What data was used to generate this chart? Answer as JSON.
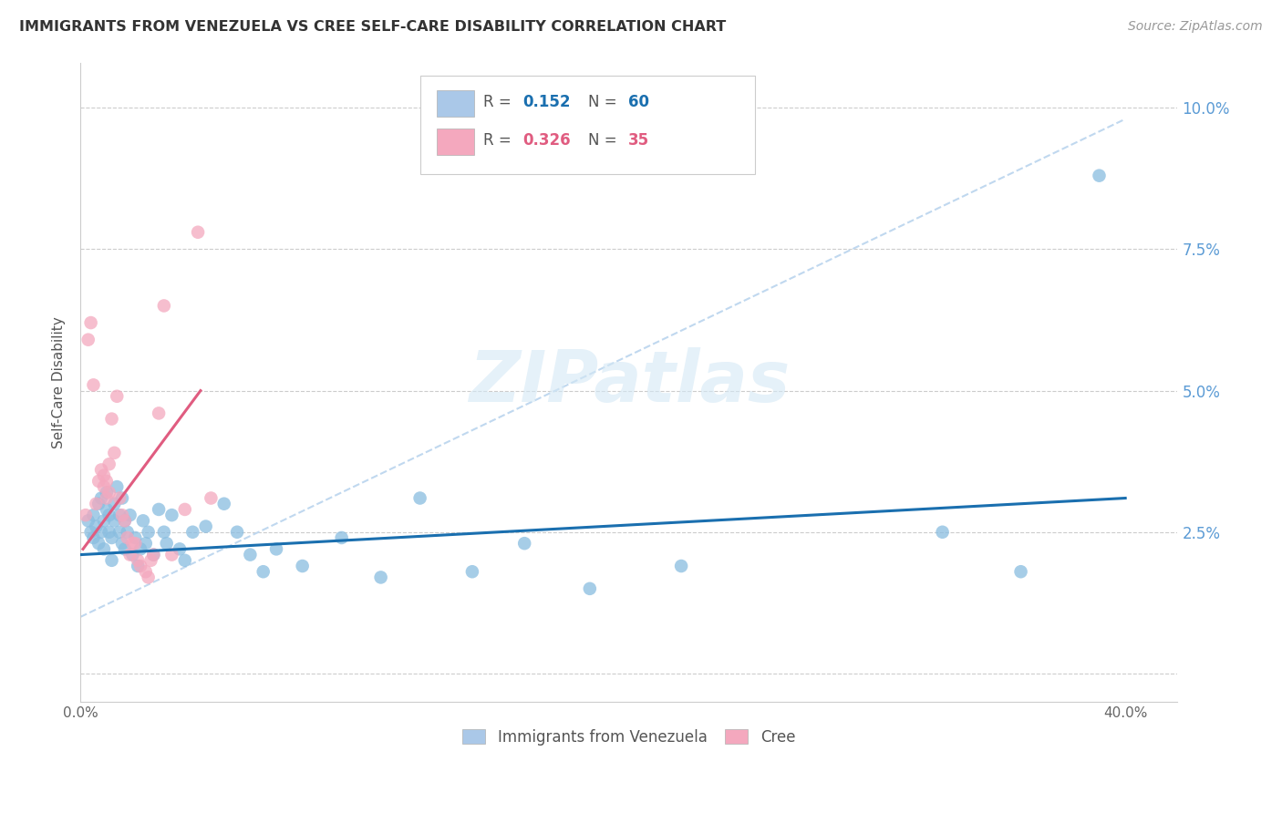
{
  "title": "IMMIGRANTS FROM VENEZUELA VS CREE SELF-CARE DISABILITY CORRELATION CHART",
  "source": "Source: ZipAtlas.com",
  "ylabel": "Self-Care Disability",
  "watermark": "ZIPatlas",
  "xlim": [
    0.0,
    0.42
  ],
  "ylim": [
    -0.005,
    0.108
  ],
  "xticks": [
    0.0,
    0.05,
    0.1,
    0.15,
    0.2,
    0.25,
    0.3,
    0.35,
    0.4
  ],
  "yticks": [
    0.0,
    0.025,
    0.05,
    0.075,
    0.1
  ],
  "ytick_labels_right": [
    "",
    "2.5%",
    "5.0%",
    "7.5%",
    "10.0%"
  ],
  "blue_R": 0.152,
  "blue_N": 60,
  "pink_R": 0.326,
  "pink_N": 35,
  "blue_color": "#89bde0",
  "pink_color": "#f4a8be",
  "blue_line_color": "#1a6faf",
  "pink_line_color": "#e05c80",
  "blue_dash_color": "#c0d8ef",
  "grid_color": "#cccccc",
  "title_color": "#333333",
  "right_tick_color": "#5b9bd5",
  "legend_box_blue": "#aac8e8",
  "legend_box_pink": "#f4a8be",
  "blue_scatter": [
    [
      0.003,
      0.027
    ],
    [
      0.004,
      0.025
    ],
    [
      0.005,
      0.024
    ],
    [
      0.005,
      0.028
    ],
    [
      0.006,
      0.026
    ],
    [
      0.007,
      0.023
    ],
    [
      0.007,
      0.03
    ],
    [
      0.008,
      0.025
    ],
    [
      0.008,
      0.031
    ],
    [
      0.009,
      0.027
    ],
    [
      0.009,
      0.022
    ],
    [
      0.01,
      0.029
    ],
    [
      0.01,
      0.032
    ],
    [
      0.011,
      0.025
    ],
    [
      0.011,
      0.028
    ],
    [
      0.012,
      0.024
    ],
    [
      0.012,
      0.02
    ],
    [
      0.013,
      0.03
    ],
    [
      0.013,
      0.027
    ],
    [
      0.014,
      0.033
    ],
    [
      0.015,
      0.028
    ],
    [
      0.015,
      0.025
    ],
    [
      0.016,
      0.023
    ],
    [
      0.016,
      0.031
    ],
    [
      0.017,
      0.027
    ],
    [
      0.017,
      0.022
    ],
    [
      0.018,
      0.025
    ],
    [
      0.019,
      0.028
    ],
    [
      0.02,
      0.021
    ],
    [
      0.021,
      0.024
    ],
    [
      0.022,
      0.019
    ],
    [
      0.023,
      0.022
    ],
    [
      0.024,
      0.027
    ],
    [
      0.025,
      0.023
    ],
    [
      0.026,
      0.025
    ],
    [
      0.028,
      0.021
    ],
    [
      0.03,
      0.029
    ],
    [
      0.032,
      0.025
    ],
    [
      0.033,
      0.023
    ],
    [
      0.035,
      0.028
    ],
    [
      0.038,
      0.022
    ],
    [
      0.04,
      0.02
    ],
    [
      0.043,
      0.025
    ],
    [
      0.048,
      0.026
    ],
    [
      0.055,
      0.03
    ],
    [
      0.06,
      0.025
    ],
    [
      0.065,
      0.021
    ],
    [
      0.07,
      0.018
    ],
    [
      0.075,
      0.022
    ],
    [
      0.085,
      0.019
    ],
    [
      0.1,
      0.024
    ],
    [
      0.115,
      0.017
    ],
    [
      0.13,
      0.031
    ],
    [
      0.15,
      0.018
    ],
    [
      0.17,
      0.023
    ],
    [
      0.195,
      0.015
    ],
    [
      0.23,
      0.019
    ],
    [
      0.33,
      0.025
    ],
    [
      0.36,
      0.018
    ],
    [
      0.39,
      0.088
    ]
  ],
  "pink_scatter": [
    [
      0.002,
      0.028
    ],
    [
      0.003,
      0.059
    ],
    [
      0.004,
      0.062
    ],
    [
      0.005,
      0.051
    ],
    [
      0.006,
      0.03
    ],
    [
      0.007,
      0.034
    ],
    [
      0.008,
      0.036
    ],
    [
      0.009,
      0.033
    ],
    [
      0.009,
      0.035
    ],
    [
      0.01,
      0.031
    ],
    [
      0.01,
      0.034
    ],
    [
      0.011,
      0.032
    ],
    [
      0.011,
      0.037
    ],
    [
      0.012,
      0.045
    ],
    [
      0.013,
      0.039
    ],
    [
      0.014,
      0.049
    ],
    [
      0.015,
      0.031
    ],
    [
      0.016,
      0.028
    ],
    [
      0.017,
      0.027
    ],
    [
      0.018,
      0.024
    ],
    [
      0.019,
      0.021
    ],
    [
      0.02,
      0.023
    ],
    [
      0.021,
      0.023
    ],
    [
      0.022,
      0.02
    ],
    [
      0.023,
      0.019
    ],
    [
      0.025,
      0.018
    ],
    [
      0.026,
      0.017
    ],
    [
      0.027,
      0.02
    ],
    [
      0.028,
      0.021
    ],
    [
      0.03,
      0.046
    ],
    [
      0.032,
      0.065
    ],
    [
      0.035,
      0.021
    ],
    [
      0.04,
      0.029
    ],
    [
      0.045,
      0.078
    ],
    [
      0.05,
      0.031
    ]
  ],
  "blue_trend_x": [
    0.0,
    0.4
  ],
  "blue_trend_y_start": 0.021,
  "blue_trend_y_end": 0.031,
  "pink_trend_x_start": 0.001,
  "pink_trend_x_end": 0.046,
  "pink_trend_y_start": 0.022,
  "pink_trend_y_end": 0.05,
  "blue_dash_trend_x": [
    0.0,
    0.4
  ],
  "blue_dash_trend_y_start": 0.01,
  "blue_dash_trend_y_end": 0.098
}
